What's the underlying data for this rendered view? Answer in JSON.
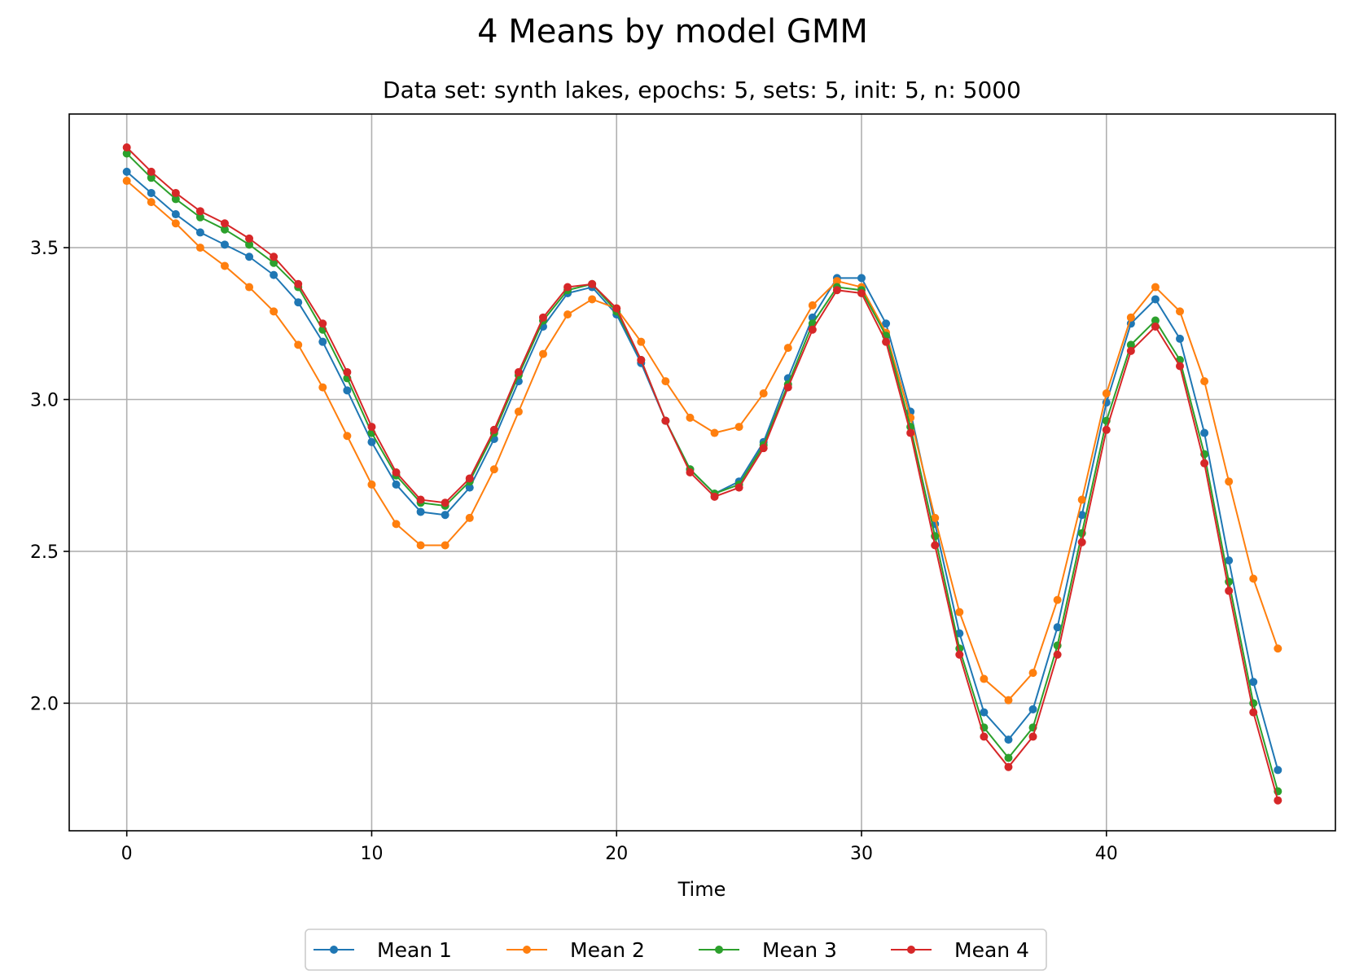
{
  "chart_data": {
    "type": "line",
    "title": "4 Means by model GMM",
    "subtitle": "Data set: synth lakes, epochs: 5, sets: 5, init: 5, n: 5000",
    "xlabel": "Time",
    "ylabel": "",
    "xlim": [
      -2.35,
      49.35
    ],
    "ylim": [
      1.58,
      3.94
    ],
    "xticks": [
      0,
      10,
      20,
      30,
      40
    ],
    "yticks": [
      2.0,
      2.5,
      3.0,
      3.5
    ],
    "xtick_labels": [
      "0",
      "10",
      "20",
      "30",
      "40"
    ],
    "ytick_labels": [
      "2.0",
      "2.5",
      "3.0",
      "3.5"
    ],
    "grid": true,
    "legend_position": "bottom-center",
    "x": [
      0,
      1,
      2,
      3,
      4,
      5,
      6,
      7,
      8,
      9,
      10,
      11,
      12,
      13,
      14,
      15,
      16,
      17,
      18,
      19,
      20,
      21,
      22,
      23,
      24,
      25,
      26,
      27,
      28,
      29,
      30,
      31,
      32,
      33,
      34,
      35,
      36,
      37,
      38,
      39,
      40,
      41,
      42,
      43,
      44,
      45,
      46,
      47
    ],
    "series": [
      {
        "name": "Mean 1",
        "color": "#1f77b4",
        "values": [
          3.75,
          3.68,
          3.61,
          3.55,
          3.51,
          3.47,
          3.41,
          3.32,
          3.19,
          3.03,
          2.86,
          2.72,
          2.63,
          2.62,
          2.71,
          2.87,
          3.06,
          3.24,
          3.35,
          3.37,
          3.28,
          3.12,
          2.93,
          2.77,
          2.69,
          2.73,
          2.86,
          3.07,
          3.27,
          3.4,
          3.4,
          3.25,
          2.96,
          2.59,
          2.23,
          1.97,
          1.88,
          1.98,
          2.25,
          2.62,
          2.99,
          3.25,
          3.33,
          3.2,
          2.89,
          2.47,
          2.07,
          1.78
        ]
      },
      {
        "name": "Mean 2",
        "color": "#ff7f0e",
        "values": [
          3.72,
          3.65,
          3.58,
          3.5,
          3.44,
          3.37,
          3.29,
          3.18,
          3.04,
          2.88,
          2.72,
          2.59,
          2.52,
          2.52,
          2.61,
          2.77,
          2.96,
          3.15,
          3.28,
          3.33,
          3.3,
          3.19,
          3.06,
          2.94,
          2.89,
          2.91,
          3.02,
          3.17,
          3.31,
          3.39,
          3.37,
          3.22,
          2.94,
          2.61,
          2.3,
          2.08,
          2.01,
          2.1,
          2.34,
          2.67,
          3.02,
          3.27,
          3.37,
          3.29,
          3.06,
          2.73,
          2.41,
          2.18
        ]
      },
      {
        "name": "Mean 3",
        "color": "#2ca02c",
        "values": [
          3.81,
          3.73,
          3.66,
          3.6,
          3.56,
          3.51,
          3.45,
          3.37,
          3.23,
          3.07,
          2.89,
          2.75,
          2.66,
          2.65,
          2.73,
          2.89,
          3.08,
          3.26,
          3.36,
          3.38,
          3.29,
          3.13,
          2.93,
          2.77,
          2.69,
          2.72,
          2.85,
          3.05,
          3.25,
          3.37,
          3.36,
          3.21,
          2.91,
          2.55,
          2.18,
          1.92,
          1.82,
          1.92,
          2.19,
          2.56,
          2.93,
          3.18,
          3.26,
          3.13,
          2.82,
          2.4,
          2.0,
          1.71
        ]
      },
      {
        "name": "Mean 4",
        "color": "#d62728",
        "values": [
          3.83,
          3.75,
          3.68,
          3.62,
          3.58,
          3.53,
          3.47,
          3.38,
          3.25,
          3.09,
          2.91,
          2.76,
          2.67,
          2.66,
          2.74,
          2.9,
          3.09,
          3.27,
          3.37,
          3.38,
          3.3,
          3.13,
          2.93,
          2.76,
          2.68,
          2.71,
          2.84,
          3.04,
          3.23,
          3.36,
          3.35,
          3.19,
          2.89,
          2.52,
          2.16,
          1.89,
          1.79,
          1.89,
          2.16,
          2.53,
          2.9,
          3.16,
          3.24,
          3.11,
          2.79,
          2.37,
          1.97,
          1.68
        ]
      }
    ]
  }
}
